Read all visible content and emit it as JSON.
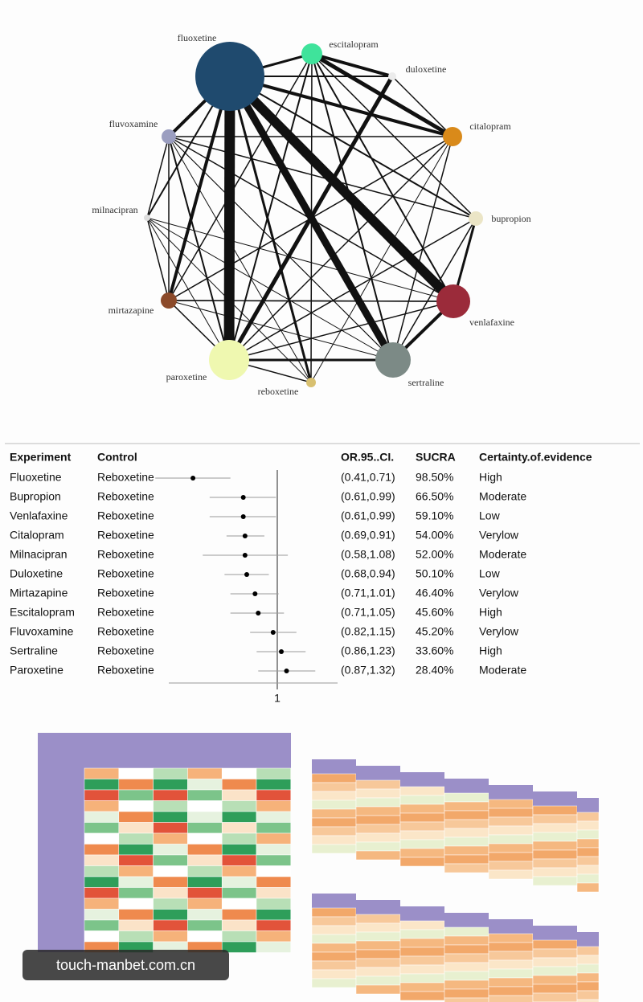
{
  "network": {
    "nodes": [
      {
        "label": "fluoxetine",
        "color": "#1f4a6e"
      },
      {
        "label": "escitalopram",
        "color": "#3fe39b"
      },
      {
        "label": "duloxetine",
        "color": "#ececec"
      },
      {
        "label": "citalopram",
        "color": "#d98a1a"
      },
      {
        "label": "bupropion",
        "color": "#ebe5c6"
      },
      {
        "label": "venlafaxine",
        "color": "#9b2b3a"
      },
      {
        "label": "sertraline",
        "color": "#7c8a86"
      },
      {
        "label": "reboxetine",
        "color": "#d8c070"
      },
      {
        "label": "paroxetine",
        "color": "#eff8b0"
      },
      {
        "label": "mirtazapine",
        "color": "#8b4a2a"
      },
      {
        "label": "milnacipran",
        "color": "#dddddd"
      },
      {
        "label": "fluvoxamine",
        "color": "#9b9ec0"
      }
    ]
  },
  "forest": {
    "headers": [
      "Experiment",
      "Control",
      "OR.95..CI.",
      "SUCRA",
      "Certainty.of.evidence"
    ],
    "xlim": [
      0.4,
      1.6
    ],
    "log": true,
    "xticks": [
      1
    ],
    "rows": [
      {
        "experiment": "Fluoxetine",
        "control": "Reboxetine",
        "ci_label": "(0.41,0.71)",
        "or": 0.54,
        "ci_low": 0.41,
        "ci_high": 0.71,
        "sucra": "98.50%",
        "certainty": "High"
      },
      {
        "experiment": "Bupropion",
        "control": "Reboxetine",
        "ci_label": "(0.61,0.99)",
        "or": 0.78,
        "ci_low": 0.61,
        "ci_high": 0.99,
        "sucra": "66.50%",
        "certainty": "Moderate"
      },
      {
        "experiment": "Venlafaxine",
        "control": "Reboxetine",
        "ci_label": "(0.61,0.99)",
        "or": 0.78,
        "ci_low": 0.61,
        "ci_high": 0.99,
        "sucra": "59.10%",
        "certainty": "Low"
      },
      {
        "experiment": "Citalopram",
        "control": "Reboxetine",
        "ci_label": "(0.69,0.91)",
        "or": 0.79,
        "ci_low": 0.69,
        "ci_high": 0.91,
        "sucra": "54.00%",
        "certainty": "Verylow"
      },
      {
        "experiment": "Milnacipran",
        "control": "Reboxetine",
        "ci_label": "(0.58,1.08)",
        "or": 0.79,
        "ci_low": 0.58,
        "ci_high": 1.08,
        "sucra": "52.00%",
        "certainty": "Moderate"
      },
      {
        "experiment": "Duloxetine",
        "control": "Reboxetine",
        "ci_label": "(0.68,0.94)",
        "or": 0.8,
        "ci_low": 0.68,
        "ci_high": 0.94,
        "sucra": "50.10%",
        "certainty": "Low"
      },
      {
        "experiment": "Mirtazapine",
        "control": "Reboxetine",
        "ci_label": "(0.71,1.01)",
        "or": 0.85,
        "ci_low": 0.71,
        "ci_high": 1.01,
        "sucra": "46.40%",
        "certainty": "Verylow"
      },
      {
        "experiment": "Escitalopram",
        "control": "Reboxetine",
        "ci_label": "(0.71,1.05)",
        "or": 0.87,
        "ci_low": 0.71,
        "ci_high": 1.05,
        "sucra": "45.60%",
        "certainty": "High"
      },
      {
        "experiment": "Fluvoxamine",
        "control": "Reboxetine",
        "ci_label": "(0.82,1.15)",
        "or": 0.97,
        "ci_low": 0.82,
        "ci_high": 1.15,
        "sucra": "45.20%",
        "certainty": "Verylow"
      },
      {
        "experiment": "Sertraline",
        "control": "Reboxetine",
        "ci_label": "(0.86,1.23)",
        "or": 1.03,
        "ci_low": 0.86,
        "ci_high": 1.23,
        "sucra": "33.60%",
        "certainty": "High"
      },
      {
        "experiment": "Paroxetine",
        "control": "Reboxetine",
        "ci_label": "(0.87,1.32)",
        "or": 1.07,
        "ci_low": 0.87,
        "ci_high": 1.32,
        "sucra": "28.40%",
        "certainty": "Moderate"
      }
    ]
  },
  "watermark": "touch-manbet.com.cn"
}
